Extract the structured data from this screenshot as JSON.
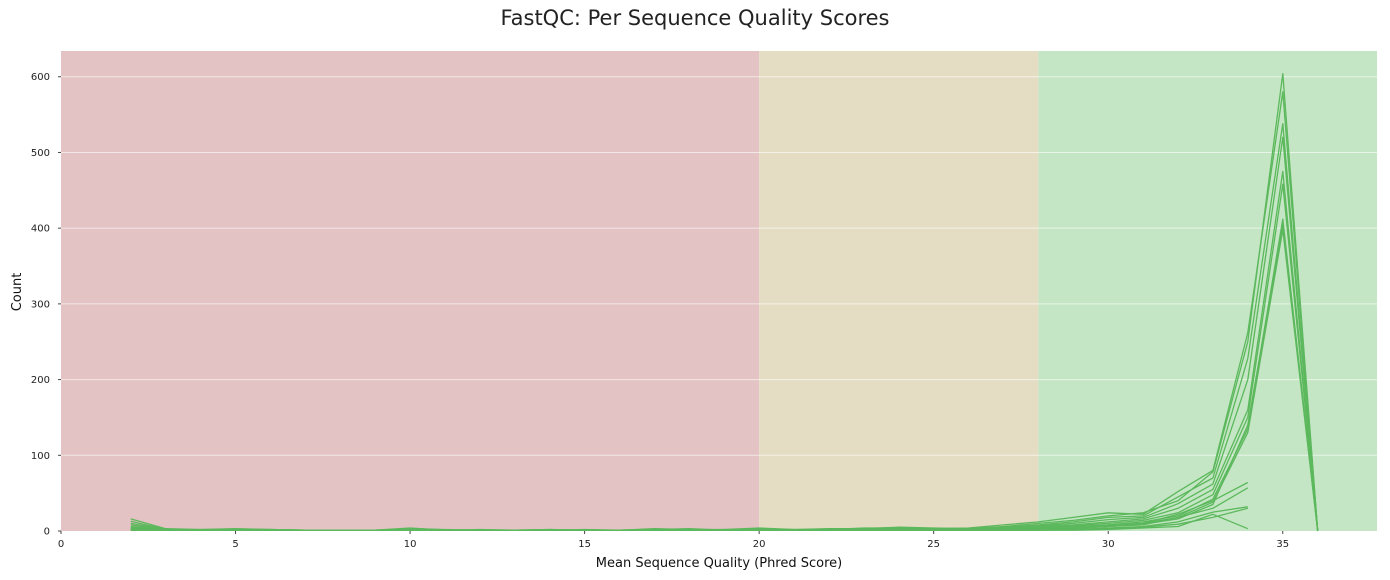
{
  "chart_data": {
    "type": "line",
    "title": "FastQC: Per Sequence Quality Scores",
    "xlabel": "Mean Sequence Quality (Phred Score)",
    "ylabel": "Count",
    "xlim": [
      0,
      37.7
    ],
    "ylim": [
      0,
      634
    ],
    "x_ticks": [
      0,
      5,
      10,
      15,
      20,
      25,
      30,
      35
    ],
    "y_ticks": [
      0,
      100,
      200,
      300,
      400,
      500,
      600
    ],
    "grid": "horizontal",
    "legend": "none",
    "bands": [
      {
        "from": 0,
        "to": 20,
        "color": "#e3c3c3"
      },
      {
        "from": 20,
        "to": 28,
        "color": "#e5dcc4"
      },
      {
        "from": 28,
        "to": 37.7,
        "color": "#c4e6c4"
      }
    ],
    "line_color": "#5cb85c",
    "series": [
      {
        "x": [
          2,
          3,
          4,
          5,
          6,
          7,
          8,
          9,
          10,
          11,
          12,
          13,
          14,
          15,
          16,
          17,
          18,
          19,
          20,
          21,
          22,
          23,
          24,
          25,
          26,
          27,
          28,
          29,
          30,
          31,
          32,
          33,
          34,
          35,
          36
        ],
        "y": [
          16,
          3,
          2,
          3,
          2,
          1,
          1,
          1,
          4,
          1,
          2,
          1,
          2,
          1,
          1,
          3,
          2,
          2,
          4,
          2,
          3,
          3,
          5,
          4,
          3,
          6,
          10,
          14,
          20,
          24,
          40,
          78,
          250,
          604,
          0
        ]
      },
      {
        "x": [
          2,
          3,
          4,
          5,
          6,
          7,
          8,
          9,
          10,
          11,
          12,
          13,
          14,
          15,
          16,
          17,
          18,
          19,
          20,
          21,
          22,
          23,
          24,
          25,
          26,
          27,
          28,
          29,
          30,
          31,
          32,
          33,
          34,
          35,
          36
        ],
        "y": [
          13,
          2,
          2,
          2,
          2,
          1,
          1,
          1,
          3,
          2,
          1,
          1,
          1,
          2,
          1,
          2,
          3,
          1,
          3,
          2,
          2,
          4,
          4,
          3,
          4,
          8,
          12,
          18,
          24,
          22,
          52,
          80,
          262,
          580,
          0
        ]
      },
      {
        "x": [
          2,
          3,
          4,
          5,
          6,
          7,
          8,
          9,
          10,
          11,
          12,
          13,
          14,
          15,
          16,
          17,
          18,
          19,
          20,
          21,
          22,
          23,
          24,
          25,
          26,
          27,
          28,
          29,
          30,
          31,
          32,
          33,
          34,
          35,
          36
        ],
        "y": [
          10,
          2,
          1,
          2,
          2,
          1,
          1,
          1,
          2,
          1,
          1,
          1,
          2,
          1,
          1,
          2,
          1,
          2,
          2,
          1,
          2,
          2,
          3,
          2,
          2,
          5,
          8,
          12,
          18,
          20,
          45,
          70,
          228,
          538,
          0
        ]
      },
      {
        "x": [
          2,
          3,
          4,
          5,
          6,
          7,
          8,
          9,
          10,
          11,
          12,
          13,
          14,
          15,
          16,
          17,
          18,
          19,
          20,
          21,
          22,
          23,
          24,
          25,
          26,
          27,
          28,
          29,
          30,
          31,
          32,
          33,
          34,
          35,
          36
        ],
        "y": [
          8,
          1,
          1,
          2,
          1,
          1,
          1,
          1,
          2,
          1,
          1,
          1,
          1,
          1,
          1,
          1,
          2,
          1,
          2,
          1,
          2,
          2,
          3,
          2,
          3,
          4,
          7,
          10,
          15,
          18,
          36,
          62,
          200,
          520,
          0
        ]
      },
      {
        "x": [
          2,
          3,
          4,
          5,
          6,
          7,
          8,
          9,
          10,
          11,
          12,
          13,
          14,
          15,
          16,
          17,
          18,
          19,
          20,
          21,
          22,
          23,
          24,
          25,
          26,
          27,
          28,
          29,
          30,
          31,
          32,
          33,
          34,
          35,
          36
        ],
        "y": [
          6,
          1,
          1,
          1,
          1,
          1,
          1,
          1,
          1,
          1,
          1,
          1,
          1,
          1,
          1,
          1,
          1,
          1,
          1,
          1,
          1,
          2,
          2,
          2,
          2,
          3,
          6,
          8,
          12,
          16,
          30,
          55,
          160,
          475,
          0
        ]
      },
      {
        "x": [
          2,
          3,
          4,
          5,
          6,
          7,
          8,
          9,
          10,
          11,
          12,
          13,
          14,
          15,
          16,
          17,
          18,
          19,
          20,
          21,
          22,
          23,
          24,
          25,
          26,
          27,
          28,
          29,
          30,
          31,
          32,
          33,
          34,
          35,
          36
        ],
        "y": [
          5,
          1,
          1,
          1,
          1,
          1,
          1,
          1,
          1,
          1,
          1,
          1,
          1,
          1,
          1,
          1,
          1,
          1,
          1,
          1,
          1,
          1,
          2,
          2,
          2,
          3,
          5,
          7,
          10,
          14,
          24,
          48,
          150,
          458,
          0
        ]
      },
      {
        "x": [
          2,
          3,
          4,
          5,
          6,
          7,
          8,
          9,
          10,
          11,
          12,
          13,
          14,
          15,
          16,
          17,
          18,
          19,
          20,
          21,
          22,
          23,
          24,
          25,
          26,
          27,
          28,
          29,
          30,
          31,
          32,
          33,
          34,
          35,
          36
        ],
        "y": [
          4,
          1,
          1,
          1,
          1,
          1,
          1,
          1,
          1,
          1,
          1,
          1,
          1,
          1,
          1,
          1,
          1,
          1,
          1,
          1,
          1,
          1,
          1,
          1,
          2,
          2,
          4,
          6,
          8,
          12,
          20,
          42,
          135,
          412,
          0
        ]
      },
      {
        "x": [
          2,
          3,
          4,
          5,
          6,
          7,
          8,
          9,
          10,
          11,
          12,
          13,
          14,
          15,
          16,
          17,
          18,
          19,
          20,
          21,
          22,
          23,
          24,
          25,
          26,
          27,
          28,
          29,
          30,
          31,
          32,
          33,
          34,
          35,
          36
        ],
        "y": [
          3,
          1,
          1,
          1,
          1,
          1,
          1,
          1,
          1,
          1,
          1,
          1,
          1,
          1,
          1,
          1,
          1,
          1,
          1,
          1,
          1,
          1,
          1,
          1,
          1,
          2,
          3,
          5,
          7,
          10,
          18,
          38,
          130,
          398,
          0
        ]
      },
      {
        "x": [
          2,
          3,
          4,
          5,
          6,
          7,
          8,
          9,
          10,
          11,
          12,
          13,
          14,
          15,
          16,
          17,
          18,
          19,
          20,
          21,
          22,
          23,
          24,
          25,
          26,
          27,
          28,
          29,
          30,
          31,
          32,
          33,
          34,
          35,
          36
        ],
        "y": [
          3,
          1,
          1,
          1,
          1,
          1,
          1,
          1,
          1,
          1,
          1,
          1,
          1,
          1,
          1,
          1,
          1,
          1,
          1,
          1,
          1,
          1,
          1,
          1,
          1,
          2,
          3,
          4,
          6,
          9,
          16,
          35,
          140,
          405,
          0
        ]
      },
      {
        "x": [
          2,
          3,
          4,
          5,
          6,
          7,
          8,
          9,
          10,
          11,
          12,
          13,
          14,
          15,
          16,
          17,
          18,
          19,
          20,
          21,
          22,
          23,
          24,
          25,
          26,
          27,
          28,
          29,
          30,
          31,
          32,
          33,
          34
        ],
        "y": [
          2,
          1,
          1,
          1,
          1,
          1,
          1,
          1,
          1,
          1,
          1,
          1,
          1,
          1,
          1,
          1,
          1,
          1,
          1,
          1,
          1,
          1,
          1,
          1,
          1,
          2,
          3,
          4,
          8,
          10,
          22,
          40,
          64
        ]
      },
      {
        "x": [
          2,
          3,
          4,
          5,
          6,
          7,
          8,
          9,
          10,
          11,
          12,
          13,
          14,
          15,
          16,
          17,
          18,
          19,
          20,
          21,
          22,
          23,
          24,
          25,
          26,
          27,
          28,
          29,
          30,
          31,
          32,
          33,
          34
        ],
        "y": [
          2,
          1,
          1,
          1,
          1,
          1,
          1,
          1,
          1,
          1,
          1,
          1,
          1,
          1,
          1,
          1,
          1,
          1,
          1,
          1,
          1,
          1,
          1,
          1,
          1,
          1,
          2,
          3,
          6,
          8,
          18,
          30,
          57
        ]
      },
      {
        "x": [
          2,
          3,
          4,
          5,
          6,
          7,
          8,
          9,
          10,
          11,
          12,
          13,
          14,
          15,
          16,
          17,
          18,
          19,
          20,
          21,
          22,
          23,
          24,
          25,
          26,
          27,
          28,
          29,
          30,
          31,
          32,
          33,
          34
        ],
        "y": [
          2,
          1,
          1,
          1,
          1,
          1,
          1,
          1,
          1,
          1,
          1,
          1,
          1,
          1,
          1,
          1,
          1,
          1,
          1,
          1,
          1,
          1,
          1,
          1,
          1,
          1,
          2,
          2,
          4,
          6,
          12,
          25,
          32
        ]
      },
      {
        "x": [
          2,
          3,
          4,
          5,
          6,
          7,
          8,
          9,
          10,
          11,
          12,
          13,
          14,
          15,
          16,
          17,
          18,
          19,
          20,
          21,
          22,
          23,
          24,
          25,
          26,
          27,
          28,
          29,
          30,
          31,
          32,
          33,
          34
        ],
        "y": [
          1,
          1,
          1,
          1,
          1,
          1,
          1,
          1,
          1,
          1,
          1,
          1,
          1,
          1,
          1,
          1,
          1,
          1,
          1,
          1,
          1,
          1,
          1,
          1,
          1,
          1,
          1,
          2,
          3,
          5,
          9,
          18,
          30
        ]
      },
      {
        "x": [
          2,
          3,
          4,
          5,
          6,
          7,
          8,
          9,
          10,
          11,
          12,
          13,
          14,
          15,
          16,
          17,
          18,
          19,
          20,
          21,
          22,
          23,
          24,
          25,
          26,
          27,
          28,
          29,
          30,
          31,
          32,
          33,
          34
        ],
        "y": [
          1,
          1,
          1,
          1,
          1,
          1,
          1,
          1,
          1,
          1,
          1,
          1,
          1,
          1,
          1,
          1,
          1,
          1,
          1,
          1,
          1,
          1,
          1,
          1,
          1,
          1,
          1,
          1,
          2,
          4,
          6,
          22,
          3
        ]
      }
    ]
  }
}
